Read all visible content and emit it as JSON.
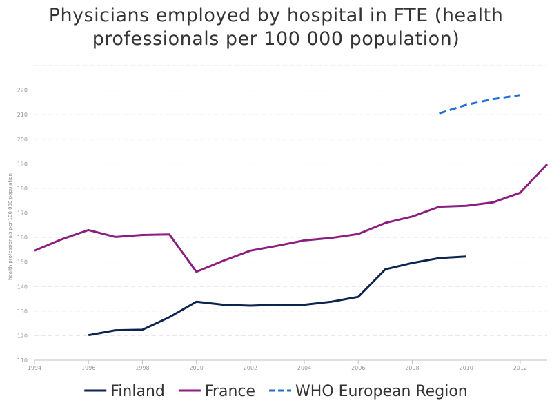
{
  "chart_data": {
    "type": "line",
    "title": "Physicians employed by hospital in FTE (health professionals per 100 000 population)",
    "ylabel": "health professionals per 100 000 population",
    "xlabel": "",
    "xlim": [
      1994,
      2013
    ],
    "ylim": [
      110,
      230
    ],
    "x_ticks": [
      "1994",
      "1996",
      "1998",
      "2000",
      "2002",
      "2004",
      "2006",
      "2008",
      "2010",
      "2012"
    ],
    "y_ticks": [
      "110",
      "120",
      "130",
      "140",
      "150",
      "160",
      "170",
      "180",
      "190",
      "200",
      "210",
      "220"
    ],
    "grid": true,
    "legend_position": "bottom",
    "series": [
      {
        "name": "Finland",
        "color": "#0d2350",
        "dash": "solid",
        "x": [
          1996,
          1997,
          1998,
          1999,
          2000,
          2001,
          2002,
          2003,
          2004,
          2005,
          2006,
          2007,
          2008,
          2009,
          2010
        ],
        "values": [
          120.2,
          122.2,
          122.4,
          127.5,
          133.8,
          132.6,
          132.2,
          132.6,
          132.6,
          133.8,
          135.8,
          147.0,
          149.6,
          151.6,
          152.2
        ]
      },
      {
        "name": "France",
        "color": "#8b1e7e",
        "dash": "solid",
        "x": [
          1994,
          1995,
          1996,
          1997,
          1998,
          1999,
          2000,
          2001,
          2002,
          2003,
          2004,
          2005,
          2006,
          2007,
          2008,
          2009,
          2010,
          2011,
          2012,
          2013
        ],
        "values": [
          154.6,
          159.2,
          163.0,
          160.2,
          161.0,
          161.2,
          146.0,
          150.5,
          154.6,
          156.6,
          158.8,
          159.8,
          161.4,
          165.9,
          168.5,
          172.5,
          172.9,
          174.3,
          178.2,
          189.8
        ]
      },
      {
        "name": "WHO European Region",
        "color": "#1f6fd1",
        "dash": "dashed",
        "x": [
          2009,
          2010,
          2011,
          2012
        ],
        "values": [
          210.5,
          214.0,
          216.3,
          218.0
        ]
      }
    ]
  }
}
